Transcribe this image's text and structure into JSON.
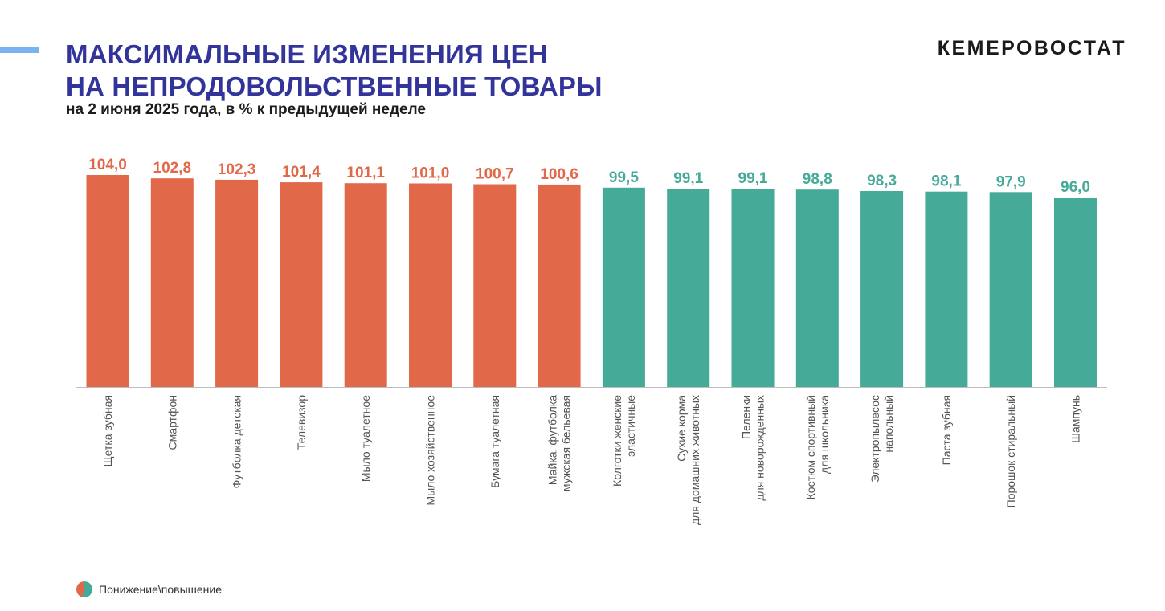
{
  "header": {
    "title_line1": "МАКСИМАЛЬНЫЕ ИЗМЕНЕНИЯ ЦЕН",
    "title_line2": "НА НЕПРОДОВОЛЬСТВЕННЫЕ ТОВАРЫ",
    "subtitle": "на 2 июня 2025 года, в % к предыдущей неделе",
    "brand": "КЕМЕРОВОСТАТ"
  },
  "legend": {
    "label": "Понижение\\повышение"
  },
  "colors": {
    "increase": "#e2684a",
    "decrease": "#46aa99",
    "axis": "#bdbdbd",
    "title": "#33349a"
  },
  "chart_data": {
    "type": "bar",
    "title": "МАКСИМАЛЬНЫЕ ИЗМЕНЕНИЯ ЦЕН НА НЕПРОДОВОЛЬСТВЕННЫЕ ТОВАРЫ",
    "subtitle": "на 2 июня 2025 года, в % к предыдущей неделе",
    "categories": [
      [
        "Щетка зубная"
      ],
      [
        "Смартфон"
      ],
      [
        "Футболка детская"
      ],
      [
        "Телевизор"
      ],
      [
        "Мыло туалетное"
      ],
      [
        "Мыло хозяйственное"
      ],
      [
        "Бумага туалетная"
      ],
      [
        "Майка, футболка",
        "мужская бельевая"
      ],
      [
        "Колготки женские",
        "эластичные"
      ],
      [
        "Сухие корма",
        "для домашних животных"
      ],
      [
        "Пеленки",
        "для новорожденных"
      ],
      [
        "Костюм спортивный",
        "для школьника"
      ],
      [
        "Электропылесос",
        "напольный"
      ],
      [
        "Паста зубная"
      ],
      [
        "Порошок стиральный"
      ],
      [
        "Шампунь"
      ]
    ],
    "values": [
      104.0,
      102.8,
      102.3,
      101.4,
      101.1,
      101.0,
      100.7,
      100.6,
      99.5,
      99.1,
      99.1,
      98.8,
      98.3,
      98.1,
      97.9,
      96.0
    ],
    "value_labels": [
      "104,0",
      "102,8",
      "102,3",
      "101,4",
      "101,1",
      "101,0",
      "100,7",
      "100,6",
      "99,5",
      "99,1",
      "99,1",
      "98,8",
      "98,3",
      "98,1",
      "97,9",
      "96,0"
    ],
    "threshold": 100,
    "axes_visible": false,
    "grid": false,
    "legend_position": "bottom-left"
  }
}
